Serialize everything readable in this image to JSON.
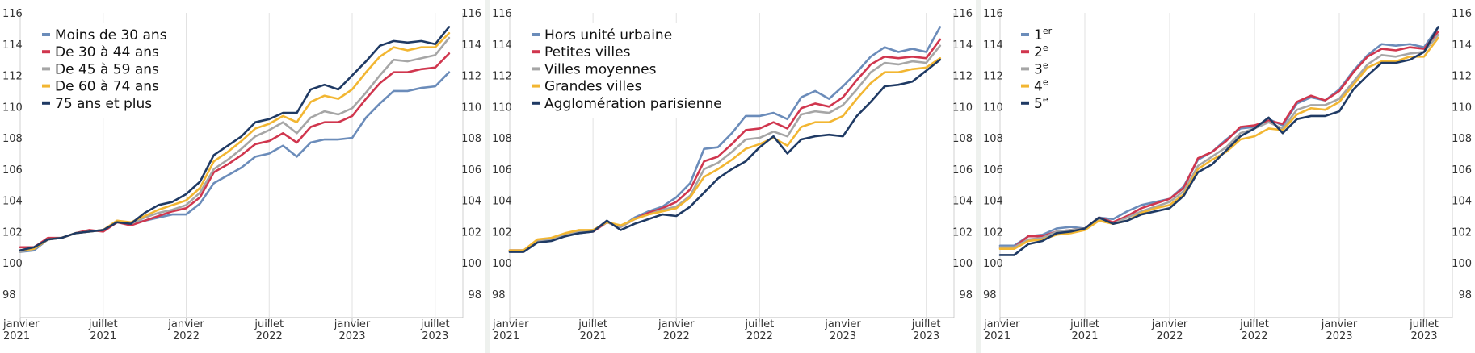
{
  "chart_data": [
    {
      "type": "line",
      "title": "",
      "xlabel": "",
      "ylabel": "",
      "ylim": [
        96.5,
        116
      ],
      "yticks": [
        98,
        100,
        102,
        104,
        106,
        108,
        110,
        112,
        114,
        116
      ],
      "x_range": [
        "2021-01",
        "2023-09"
      ],
      "x_ticks": [
        {
          "month": "2021-01",
          "line1": "janvier",
          "line2": "2021"
        },
        {
          "month": "2021-07",
          "line1": "juillet",
          "line2": "2021"
        },
        {
          "month": "2022-01",
          "line1": "janvier",
          "line2": "2022"
        },
        {
          "month": "2022-07",
          "line1": "juillet",
          "line2": "2022"
        },
        {
          "month": "2023-01",
          "line1": "janvier",
          "line2": "2023"
        },
        {
          "month": "2023-07",
          "line1": "juillet",
          "line2": "2023"
        }
      ],
      "grid": "vertical",
      "legend_position": "top-left",
      "series": [
        {
          "name": "Moins de 30 ans",
          "color": "#6b8cba",
          "values": [
            100.7,
            100.8,
            101.5,
            101.6,
            101.9,
            102.0,
            102.1,
            102.6,
            102.5,
            102.7,
            102.9,
            103.1,
            103.1,
            103.8,
            105.1,
            105.6,
            106.1,
            106.8,
            107.0,
            107.5,
            106.8,
            107.7,
            107.9,
            107.9,
            108.0,
            109.3,
            110.2,
            111.0,
            111.0,
            111.2,
            111.3,
            112.2
          ]
        },
        {
          "name": "De 30 à 44 ans",
          "color": "#d0364e",
          "values": [
            101.0,
            101.0,
            101.6,
            101.6,
            101.9,
            102.1,
            102.0,
            102.6,
            102.4,
            102.7,
            103.0,
            103.3,
            103.5,
            104.2,
            105.8,
            106.3,
            106.9,
            107.6,
            107.8,
            108.3,
            107.7,
            108.7,
            109.0,
            109.0,
            109.4,
            110.5,
            111.5,
            112.2,
            112.2,
            112.4,
            112.5,
            113.4
          ]
        },
        {
          "name": "De 45 à 59 ans",
          "color": "#a6a6a6",
          "values": [
            100.7,
            100.9,
            101.5,
            101.6,
            101.9,
            102.0,
            102.1,
            102.7,
            102.5,
            102.9,
            103.2,
            103.4,
            103.7,
            104.5,
            106.0,
            106.6,
            107.3,
            108.1,
            108.5,
            109.0,
            108.3,
            109.3,
            109.7,
            109.5,
            109.9,
            110.9,
            112.0,
            113.0,
            112.9,
            113.1,
            113.3,
            114.4
          ]
        },
        {
          "name": "De 60 à 74 ans",
          "color": "#f2b632",
          "values": [
            100.8,
            100.9,
            101.5,
            101.6,
            101.9,
            102.0,
            102.1,
            102.7,
            102.6,
            103.0,
            103.4,
            103.7,
            104.0,
            104.8,
            106.5,
            107.1,
            107.8,
            108.6,
            108.9,
            109.4,
            109.0,
            110.3,
            110.7,
            110.5,
            111.1,
            112.2,
            113.2,
            113.8,
            113.6,
            113.8,
            113.8,
            114.7
          ]
        },
        {
          "name": "75 ans et plus",
          "color": "#1f3a64",
          "values": [
            100.8,
            101.0,
            101.5,
            101.6,
            101.9,
            102.0,
            102.1,
            102.6,
            102.5,
            103.2,
            103.7,
            103.9,
            104.4,
            105.2,
            106.9,
            107.5,
            108.1,
            109.0,
            109.2,
            109.6,
            109.6,
            111.1,
            111.4,
            111.1,
            112.0,
            112.9,
            113.9,
            114.2,
            114.1,
            114.2,
            114.0,
            115.1
          ]
        }
      ]
    },
    {
      "type": "line",
      "title": "",
      "xlabel": "",
      "ylabel": "",
      "ylim": [
        96.5,
        116
      ],
      "yticks": [
        98,
        100,
        102,
        104,
        106,
        108,
        110,
        112,
        114,
        116
      ],
      "x_range": [
        "2021-01",
        "2023-09"
      ],
      "x_ticks": [
        {
          "month": "2021-01",
          "line1": "janvier",
          "line2": "2021"
        },
        {
          "month": "2021-07",
          "line1": "juillet",
          "line2": "2021"
        },
        {
          "month": "2022-01",
          "line1": "janvier",
          "line2": "2022"
        },
        {
          "month": "2022-07",
          "line1": "juillet",
          "line2": "2022"
        },
        {
          "month": "2023-01",
          "line1": "janvier",
          "line2": "2023"
        },
        {
          "month": "2023-07",
          "line1": "juillet",
          "line2": "2023"
        }
      ],
      "grid": "vertical",
      "legend_position": "top-left",
      "series": [
        {
          "name": "Hors unité urbaine",
          "color": "#6b8cba",
          "values": [
            100.8,
            100.8,
            101.4,
            101.5,
            101.8,
            101.9,
            102.0,
            102.6,
            102.3,
            102.9,
            103.3,
            103.6,
            104.2,
            105.1,
            107.3,
            107.4,
            108.3,
            109.4,
            109.4,
            109.6,
            109.2,
            110.6,
            111.0,
            110.5,
            111.3,
            112.2,
            113.2,
            113.8,
            113.5,
            113.7,
            113.5,
            115.1
          ]
        },
        {
          "name": "Petites villes",
          "color": "#d0364e",
          "values": [
            100.8,
            100.8,
            101.4,
            101.5,
            101.8,
            102.0,
            102.0,
            102.6,
            102.3,
            102.8,
            103.2,
            103.5,
            103.9,
            104.7,
            106.5,
            106.8,
            107.6,
            108.5,
            108.6,
            109.0,
            108.6,
            109.9,
            110.2,
            110.0,
            110.6,
            111.7,
            112.7,
            113.2,
            113.1,
            113.2,
            113.1,
            114.3
          ]
        },
        {
          "name": "Villes moyennes",
          "color": "#a6a6a6",
          "values": [
            100.8,
            100.8,
            101.4,
            101.5,
            101.8,
            102.0,
            102.1,
            102.6,
            102.3,
            102.8,
            103.1,
            103.4,
            103.6,
            104.3,
            106.0,
            106.4,
            107.1,
            107.9,
            108.0,
            108.4,
            108.1,
            109.5,
            109.7,
            109.6,
            110.1,
            111.1,
            112.2,
            112.8,
            112.7,
            112.9,
            112.8,
            113.9
          ]
        },
        {
          "name": "Grandes villes",
          "color": "#f2b632",
          "values": [
            100.8,
            100.8,
            101.5,
            101.6,
            101.9,
            102.1,
            102.1,
            102.6,
            102.4,
            102.8,
            103.1,
            103.3,
            103.5,
            104.2,
            105.5,
            106.0,
            106.6,
            107.3,
            107.6,
            108.0,
            107.5,
            108.7,
            109.0,
            109.0,
            109.4,
            110.5,
            111.5,
            112.2,
            112.2,
            112.4,
            112.5,
            113.1
          ]
        },
        {
          "name": "Agglomération parisienne",
          "color": "#1f3a64",
          "values": [
            100.7,
            100.7,
            101.3,
            101.4,
            101.7,
            101.9,
            102.0,
            102.7,
            102.1,
            102.5,
            102.8,
            103.1,
            103.0,
            103.6,
            104.5,
            105.4,
            106.0,
            106.5,
            107.4,
            108.1,
            107.0,
            107.9,
            108.1,
            108.2,
            108.1,
            109.4,
            110.3,
            111.3,
            111.4,
            111.6,
            112.3,
            113.0
          ]
        }
      ]
    },
    {
      "type": "line",
      "title": "",
      "xlabel": "",
      "ylabel": "",
      "ylim": [
        96.5,
        116
      ],
      "yticks": [
        98,
        100,
        102,
        104,
        106,
        108,
        110,
        112,
        114,
        116
      ],
      "x_range": [
        "2021-01",
        "2023-09"
      ],
      "x_ticks": [
        {
          "month": "2021-01",
          "line1": "janvier",
          "line2": "2021"
        },
        {
          "month": "2021-07",
          "line1": "juillet",
          "line2": "2021"
        },
        {
          "month": "2022-01",
          "line1": "janvier",
          "line2": "2022"
        },
        {
          "month": "2022-07",
          "line1": "juillet",
          "line2": "2022"
        },
        {
          "month": "2023-01",
          "line1": "janvier",
          "line2": "2023"
        },
        {
          "month": "2023-07",
          "line1": "juillet",
          "line2": "2023"
        }
      ],
      "grid": "vertical",
      "legend_position": "top-left",
      "series": [
        {
          "name": "1",
          "sup": "er",
          "color": "#6b8cba",
          "values": [
            101.1,
            101.1,
            101.7,
            101.8,
            102.2,
            102.3,
            102.2,
            102.9,
            102.8,
            103.3,
            103.7,
            103.9,
            104.1,
            104.9,
            106.6,
            107.1,
            107.9,
            108.6,
            108.7,
            109.2,
            108.8,
            110.2,
            110.6,
            110.4,
            111.1,
            112.3,
            113.3,
            114.0,
            113.9,
            114.0,
            113.8,
            115.1
          ]
        },
        {
          "name": "2",
          "sup": "e",
          "color": "#d0364e",
          "values": [
            101.0,
            101.0,
            101.7,
            101.7,
            102.0,
            102.1,
            102.2,
            102.9,
            102.6,
            103.0,
            103.5,
            103.8,
            104.1,
            104.8,
            106.7,
            107.1,
            107.8,
            108.7,
            108.8,
            109.1,
            108.9,
            110.3,
            110.7,
            110.4,
            111.0,
            112.2,
            113.2,
            113.7,
            113.6,
            113.8,
            113.7,
            114.8
          ]
        },
        {
          "name": "3",
          "sup": "e",
          "color": "#a6a6a6",
          "values": [
            101.0,
            101.0,
            101.5,
            101.6,
            102.0,
            102.1,
            102.2,
            102.8,
            102.5,
            102.9,
            103.3,
            103.6,
            103.9,
            104.6,
            106.2,
            106.8,
            107.4,
            108.3,
            108.6,
            109.0,
            108.6,
            109.8,
            110.1,
            110.1,
            110.5,
            111.6,
            112.7,
            113.3,
            113.2,
            113.4,
            113.5,
            114.6
          ]
        },
        {
          "name": "4",
          "sup": "e",
          "color": "#f2b632",
          "values": [
            100.9,
            100.9,
            101.4,
            101.5,
            101.8,
            101.9,
            102.1,
            102.7,
            102.5,
            102.7,
            103.2,
            103.5,
            103.7,
            104.4,
            106.0,
            106.6,
            107.1,
            107.9,
            108.1,
            108.6,
            108.5,
            109.5,
            109.9,
            109.8,
            110.3,
            111.4,
            112.5,
            112.9,
            112.9,
            113.2,
            113.2,
            114.4
          ]
        },
        {
          "name": "5",
          "sup": "e",
          "color": "#1f3a64",
          "values": [
            100.5,
            100.5,
            101.2,
            101.4,
            101.9,
            102.0,
            102.2,
            102.9,
            102.5,
            102.7,
            103.1,
            103.3,
            103.5,
            104.3,
            105.8,
            106.3,
            107.2,
            108.1,
            108.6,
            109.3,
            108.3,
            109.2,
            109.4,
            109.4,
            109.7,
            111.1,
            112.0,
            112.8,
            112.8,
            113.0,
            113.5,
            115.1
          ]
        }
      ]
    }
  ]
}
